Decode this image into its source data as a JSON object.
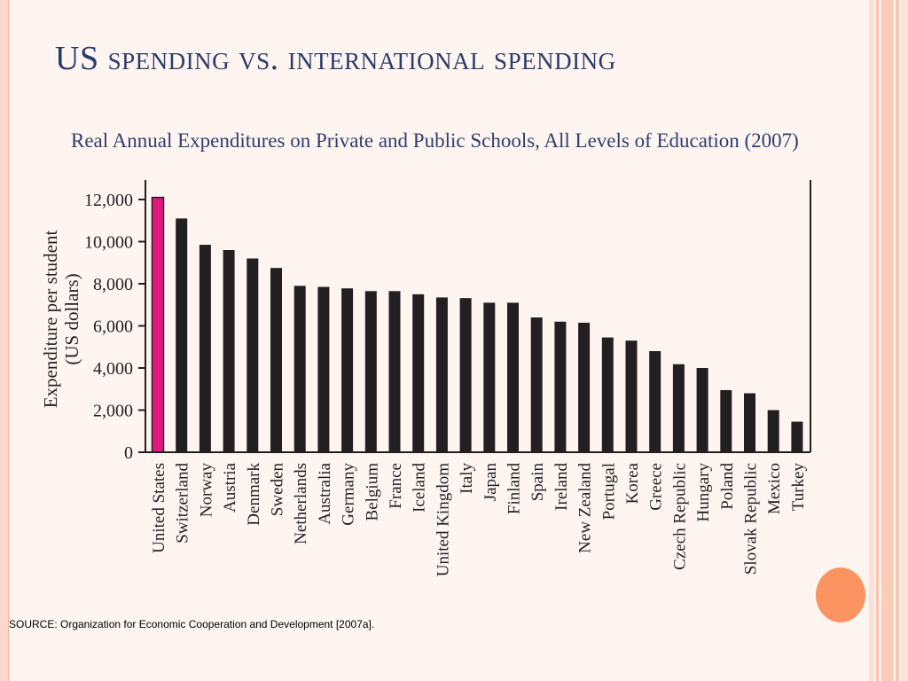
{
  "slide": {
    "title": "US spending vs. international spending",
    "subtitle": "Real Annual Expenditures on Private and Public Schools, All Levels of Education (2007)",
    "source": "SOURCE: Organization for Economic Cooperation and Development [2007a]."
  },
  "colors": {
    "highlight_bar": "#e0177f",
    "bar": "#231f20",
    "title": "#2a3c6b",
    "accent_orange": "#fb9460"
  },
  "chart_data": {
    "type": "bar",
    "title": "",
    "xlabel": "",
    "ylabel": "Expenditure per student (US dollars)",
    "ylabel_lines": [
      "Expenditure per student",
      "(US dollars)"
    ],
    "ylim": [
      0,
      12800
    ],
    "yticks": [
      0,
      2000,
      4000,
      6000,
      8000,
      10000,
      12000
    ],
    "ytick_labels": [
      "0",
      "2,000",
      "4,000",
      "6,000",
      "8,000",
      "10,000",
      "12,000"
    ],
    "grid": false,
    "highlight": "United States",
    "categories": [
      "United States",
      "Switzerland",
      "Norway",
      "Austria",
      "Denmark",
      "Sweden",
      "Netherlands",
      "Australia",
      "Germany",
      "Belgium",
      "France",
      "Iceland",
      "United Kingdom",
      "Italy",
      "Japan",
      "Finland",
      "Spain",
      "Ireland",
      "New Zealand",
      "Portugal",
      "Korea",
      "Greece",
      "Czech Republic",
      "Hungary",
      "Poland",
      "Slovak Republic",
      "Mexico",
      "Turkey"
    ],
    "values": [
      12100,
      11100,
      9850,
      9600,
      9200,
      8750,
      7900,
      7850,
      7780,
      7650,
      7650,
      7500,
      7350,
      7320,
      7100,
      7100,
      6400,
      6200,
      6150,
      5450,
      5300,
      4800,
      4180,
      4000,
      2950,
      2800,
      2000,
      1450
    ]
  }
}
